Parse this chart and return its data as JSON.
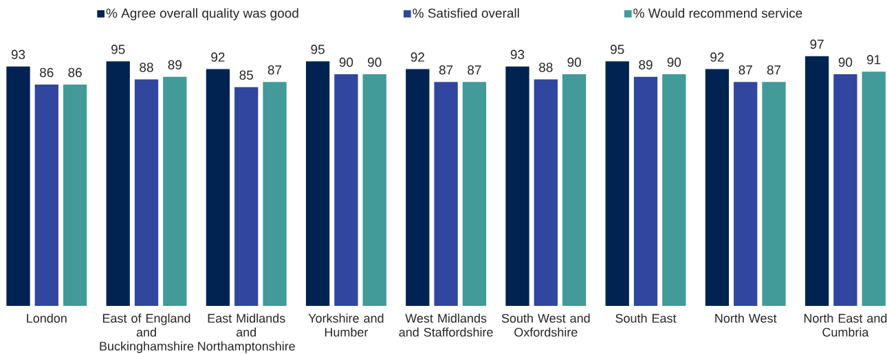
{
  "chart_data": {
    "type": "bar",
    "categories": [
      "London",
      "East of England\nand\nBuckinghamshire",
      "East Midlands\nand\nNorthamptonshire",
      "Yorkshire and\nHumber",
      "West Midlands\nand Staffordshire",
      "South West and\nOxfordshire",
      "South East",
      "North West",
      "North East and\nCumbria"
    ],
    "series": [
      {
        "name": "% Agree overall quality was good",
        "color": "#002352",
        "values": [
          93,
          95,
          92,
          95,
          92,
          93,
          95,
          92,
          97
        ]
      },
      {
        "name": "% Satisfied overall",
        "color": "#31469e",
        "values": [
          86,
          88,
          85,
          90,
          87,
          88,
          89,
          87,
          90
        ]
      },
      {
        "name": "% Would recommend service",
        "color": "#429a99",
        "values": [
          86,
          89,
          87,
          90,
          87,
          90,
          90,
          87,
          91
        ]
      }
    ],
    "data_labels": true,
    "legend": "top",
    "tick_labels": "x"
  }
}
